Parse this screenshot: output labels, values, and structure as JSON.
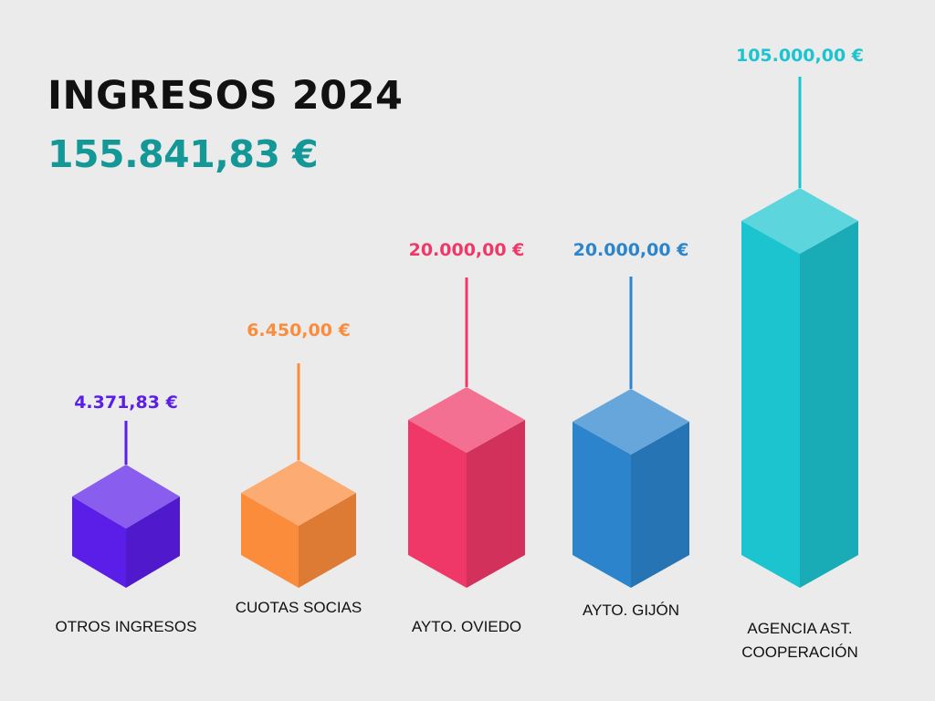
{
  "title": "INGRESOS 2024",
  "total": "155.841,83 €",
  "colors": {
    "total": "#139797"
  },
  "chart_data": {
    "type": "bar",
    "categories": [
      [
        "OTROS INGRESOS"
      ],
      [
        "CUOTAS SOCIAS"
      ],
      [
        "AYTO. OVIEDO"
      ],
      [
        "AYTO. GIJÓN"
      ],
      [
        "AGENCIA AST.",
        "COOPERACIÓN"
      ]
    ],
    "values": [
      4371.83,
      6450,
      20000,
      20000,
      105000
    ],
    "value_labels": [
      "4.371,83 €",
      "6.450,00 €",
      "20.000,00 €",
      "20.000,00 €",
      "105.000,00 €"
    ],
    "colors": [
      "#5b1ee8",
      "#fb8c3c",
      "#ef3868",
      "#2b84cc",
      "#1cc4cf"
    ]
  }
}
